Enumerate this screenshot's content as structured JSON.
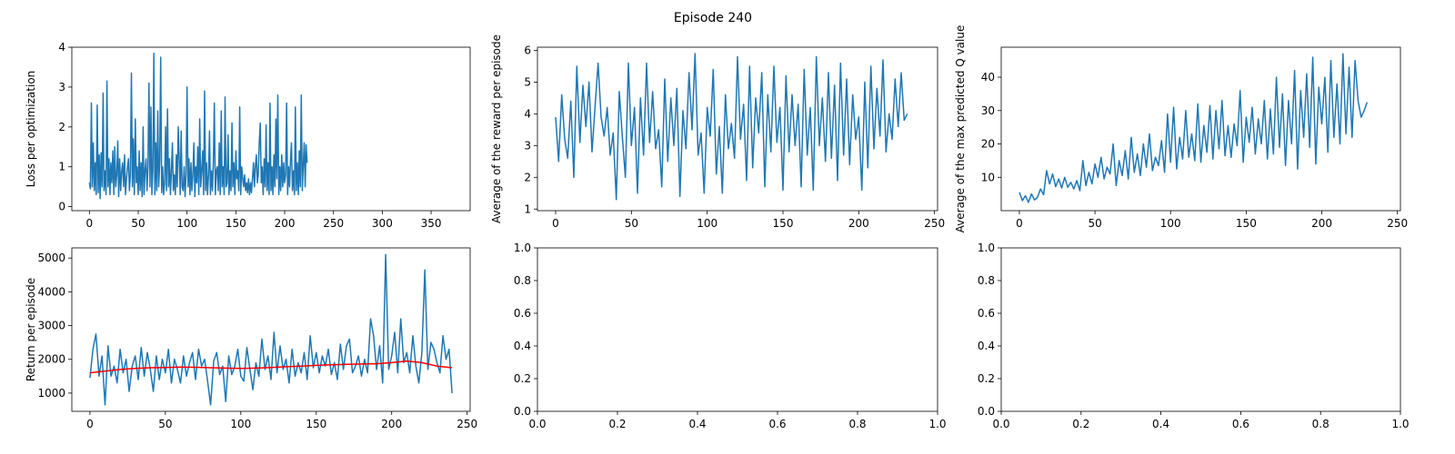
{
  "figure": {
    "suptitle": "Episode 240"
  },
  "chart_data": [
    {
      "type": "line",
      "panel": "top-left",
      "ylabel": "Loss per optimization",
      "xlim": [
        -18,
        390
      ],
      "ylim": [
        -0.1,
        4.0
      ],
      "xticks": [
        0,
        50,
        100,
        150,
        200,
        250,
        300,
        350
      ],
      "yticks": [
        0,
        1,
        2,
        3,
        4
      ],
      "series": [
        {
          "color": "#1f77b4",
          "x_start": 0,
          "x_step": 1,
          "values": [
            0.6,
            0.45,
            2.6,
            0.5,
            1.6,
            0.4,
            1.1,
            0.3,
            2.55,
            0.35,
            1.3,
            0.2,
            1.35,
            0.5,
            2.85,
            0.4,
            0.9,
            0.3,
            3.15,
            0.5,
            1.2,
            0.3,
            1.1,
            0.6,
            1.4,
            0.3,
            1.5,
            0.5,
            0.8,
            1.65,
            0.25,
            1.2,
            0.4,
            0.9,
            1.1,
            0.5,
            1.3,
            0.3,
            0.7,
            1.0,
            1.2,
            0.4,
            0.8,
            3.35,
            0.5,
            1.7,
            0.3,
            2.2,
            0.6,
            1.0,
            0.3,
            1.4,
            0.4,
            1.1,
            0.25,
            2.0,
            0.3,
            0.9,
            1.2,
            0.4,
            1.0,
            3.1,
            0.5,
            2.5,
            0.3,
            0.9,
            3.85,
            0.3,
            1.6,
            0.4,
            2.4,
            0.5,
            1.1,
            3.75,
            0.35,
            1.0,
            0.3,
            0.6,
            2.0,
            0.4,
            2.45,
            0.5,
            1.2,
            0.3,
            0.9,
            1.6,
            0.4,
            0.8,
            0.3,
            1.3,
            0.5,
            2.0,
            1.2,
            0.3,
            1.9,
            0.5,
            0.4,
            1.0,
            0.25,
            0.8,
            3.0,
            0.5,
            1.2,
            0.3,
            1.1,
            0.4,
            0.8,
            1.6,
            0.25,
            1.0,
            0.6,
            1.5,
            0.3,
            2.2,
            0.5,
            0.9,
            1.4,
            0.3,
            2.9,
            0.4,
            1.1,
            0.3,
            0.8,
            1.9,
            0.3,
            0.9,
            0.4,
            1.2,
            2.6,
            0.3,
            0.9,
            1.0,
            0.4,
            1.6,
            0.3,
            2.4,
            0.5,
            1.0,
            0.3,
            2.75,
            0.5,
            0.6,
            1.8,
            0.3,
            0.9,
            0.4,
            2.1,
            0.5,
            1.1,
            0.3,
            1.4,
            0.7,
            0.9,
            0.4,
            2.5,
            0.3,
            1.0,
            0.7,
            0.5,
            0.8,
            0.4,
            0.6,
            0.35,
            0.7,
            0.3,
            0.6,
            0.35,
            0.7,
            1.1,
            0.5,
            1.0,
            1.3,
            0.6,
            0.8,
            1.6,
            2.1,
            0.6,
            1.0,
            0.3,
            1.2,
            0.5,
            2.05,
            0.4,
            1.1,
            0.3,
            2.6,
            0.4,
            1.0,
            0.3,
            1.3,
            0.5,
            2.2,
            0.7,
            2.8,
            0.3,
            1.0,
            0.4,
            1.3,
            0.5,
            1.1,
            0.6,
            0.8,
            2.6,
            0.3,
            1.0,
            0.5,
            1.2,
            1.6,
            0.4,
            0.9,
            0.3,
            2.5,
            0.4,
            1.1,
            0.3,
            1.4,
            0.5,
            2.8,
            0.4,
            1.0,
            1.6,
            0.5,
            1.55,
            1.1
          ]
        }
      ]
    },
    {
      "type": "line",
      "panel": "top-middle",
      "ylabel": "Average of the reward per episode",
      "xlim": [
        -12,
        252
      ],
      "ylim": [
        0.95,
        6.1
      ],
      "xticks": [
        0,
        50,
        100,
        150,
        200,
        250
      ],
      "yticks": [
        1,
        2,
        3,
        4,
        5,
        6
      ],
      "series": [
        {
          "color": "#1f77b4",
          "x_start": 0,
          "x_step": 2,
          "values": [
            3.9,
            2.5,
            4.6,
            3.2,
            2.6,
            4.4,
            2.0,
            5.5,
            3.1,
            4.9,
            3.6,
            5.0,
            2.8,
            4.2,
            5.6,
            3.9,
            3.3,
            4.2,
            2.7,
            3.4,
            1.3,
            4.7,
            3.3,
            2.0,
            5.6,
            3.0,
            4.2,
            1.5,
            4.5,
            2.7,
            5.6,
            3.1,
            4.7,
            2.9,
            3.5,
            1.7,
            5.1,
            2.5,
            4.5,
            3.0,
            4.8,
            1.4,
            4.1,
            2.9,
            5.3,
            3.5,
            5.9,
            2.7,
            3.4,
            1.5,
            4.2,
            3.3,
            5.4,
            2.1,
            3.6,
            1.5,
            4.6,
            2.9,
            3.7,
            2.6,
            5.8,
            3.2,
            4.3,
            1.9,
            5.5,
            2.3,
            4.5,
            3.4,
            5.3,
            1.7,
            4.6,
            2.8,
            5.5,
            3.1,
            4.2,
            1.6,
            5.2,
            2.8,
            4.6,
            3.0,
            4.3,
            1.7,
            5.4,
            2.7,
            4.2,
            1.6,
            5.8,
            3.0,
            4.5,
            2.5,
            5.3,
            2.6,
            4.9,
            1.9,
            5.6,
            2.7,
            5.1,
            2.4,
            4.6,
            3.2,
            3.9,
            1.6,
            5.0,
            2.3,
            5.5,
            2.9,
            4.8,
            3.3,
            5.7,
            2.8,
            4.0,
            3.2,
            5.1,
            3.6,
            5.3,
            3.8,
            4.0
          ]
        }
      ]
    },
    {
      "type": "line",
      "panel": "top-right",
      "ylabel": "Average of the max predicted Q value",
      "xlim": [
        -12,
        252
      ],
      "ylim": [
        0.0,
        49.0
      ],
      "xticks": [
        0,
        50,
        100,
        150,
        200,
        250
      ],
      "yticks": [
        10,
        20,
        30,
        40
      ],
      "series": [
        {
          "color": "#1f77b4",
          "x_start": 0,
          "x_step": 2,
          "values": [
            5.5,
            3.0,
            4.5,
            2.5,
            5.0,
            3.2,
            4.0,
            6.5,
            4.8,
            12.0,
            8.0,
            11.0,
            7.2,
            9.5,
            6.8,
            10.0,
            7.0,
            8.5,
            6.5,
            9.0,
            6.0,
            15.0,
            7.5,
            11.5,
            8.0,
            14.0,
            10.0,
            16.0,
            9.5,
            13.0,
            11.0,
            20.0,
            7.5,
            15.0,
            10.5,
            18.0,
            9.5,
            22.0,
            11.5,
            17.0,
            10.5,
            20.0,
            13.0,
            23.0,
            12.0,
            16.0,
            13.5,
            21.0,
            11.5,
            29.0,
            14.5,
            31.0,
            12.5,
            22.0,
            15.5,
            30.0,
            16.0,
            23.0,
            15.0,
            32.0,
            14.5,
            25.5,
            17.5,
            31.5,
            15.5,
            30.0,
            18.5,
            33.0,
            16.5,
            25.5,
            16.0,
            26.0,
            19.5,
            36.0,
            14.5,
            28.0,
            20.5,
            31.0,
            17.0,
            27.5,
            20.0,
            33.0,
            15.5,
            30.5,
            17.0,
            40.0,
            19.0,
            35.0,
            13.5,
            33.0,
            20.0,
            42.0,
            12.5,
            36.0,
            22.0,
            41.0,
            19.0,
            46.0,
            14.0,
            37.0,
            26.0,
            40.0,
            17.5,
            45.0,
            22.0,
            38.0,
            20.0,
            47.0,
            23.0,
            43.0,
            22.0,
            45.0,
            33.0,
            28.0,
            30.0,
            32.5
          ]
        }
      ]
    },
    {
      "type": "line",
      "panel": "bottom-left",
      "ylabel": "Return per episode",
      "xlim": [
        -12,
        252
      ],
      "ylim": [
        460,
        5300
      ],
      "xticks": [
        0,
        50,
        100,
        150,
        200,
        250
      ],
      "yticks": [
        1000,
        2000,
        3000,
        4000,
        5000
      ],
      "series": [
        {
          "color": "#1f77b4",
          "x_start": 0,
          "x_step": 2,
          "values": [
            1450,
            2300,
            2750,
            1500,
            2100,
            650,
            2400,
            1500,
            1800,
            1300,
            2300,
            1600,
            2000,
            1050,
            1800,
            2100,
            1400,
            2350,
            1500,
            2200,
            1700,
            1050,
            2100,
            1400,
            2000,
            1600,
            2300,
            1300,
            2000,
            1700,
            1300,
            2100,
            1500,
            1900,
            2200,
            1400,
            2300,
            1800,
            2000,
            1350,
            650,
            1950,
            2200,
            1550,
            1800,
            750,
            2100,
            1550,
            1800,
            2300,
            1500,
            1350,
            2350,
            1700,
            1100,
            1900,
            1500,
            2600,
            1700,
            2100,
            1400,
            2800,
            1600,
            2400,
            1700,
            2000,
            1300,
            2300,
            1500,
            1900,
            1600,
            2200,
            1400,
            2700,
            1750,
            2200,
            1600,
            2100,
            1800,
            2300,
            1550,
            1900,
            1400,
            2450,
            1700,
            2400,
            2600,
            1600,
            1800,
            2100,
            1500,
            2000,
            1600,
            3200,
            2700,
            1700,
            2400,
            1300,
            5100,
            1700,
            2100,
            2800,
            1600,
            3200,
            1900,
            2200,
            1600,
            2700,
            1800,
            1300,
            2200,
            4650,
            1700,
            2500,
            2300,
            1900,
            1600,
            2700,
            2000,
            2300,
            1000
          ]
        },
        {
          "color": "#ff0000",
          "x_start": 0,
          "x_step": 10,
          "values": [
            1600,
            1650,
            1700,
            1730,
            1750,
            1760,
            1770,
            1765,
            1750,
            1740,
            1730,
            1740,
            1760,
            1780,
            1800,
            1820,
            1840,
            1850,
            1860,
            1870,
            1900,
            1950,
            1900,
            1800,
            1750
          ]
        }
      ]
    },
    {
      "type": "line",
      "panel": "bottom-middle",
      "xlim": [
        0,
        1
      ],
      "ylim": [
        0,
        1
      ],
      "xticks": [
        "0.0",
        "0.2",
        "0.4",
        "0.6",
        "0.8",
        "1.0"
      ],
      "yticks": [
        "0.0",
        "0.2",
        "0.4",
        "0.6",
        "0.8",
        "1.0"
      ],
      "series": []
    },
    {
      "type": "line",
      "panel": "bottom-right",
      "xlim": [
        0,
        1
      ],
      "ylim": [
        0,
        1
      ],
      "xticks": [
        "0.0",
        "0.2",
        "0.4",
        "0.6",
        "0.8",
        "1.0"
      ],
      "yticks": [
        "0.0",
        "0.2",
        "0.4",
        "0.6",
        "0.8",
        "1.0"
      ],
      "series": []
    }
  ]
}
